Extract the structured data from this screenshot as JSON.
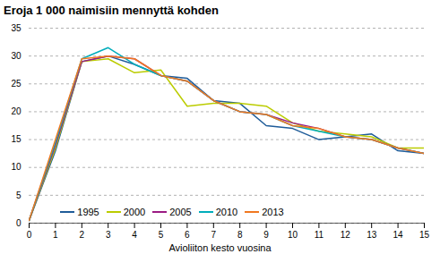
{
  "chart_data": {
    "type": "line",
    "title": "Eroja 1 000 naimisiin mennyttä kohden",
    "xlabel": "Avioliiton kesto vuosina",
    "x": [
      0,
      1,
      2,
      3,
      4,
      5,
      6,
      7,
      8,
      9,
      10,
      11,
      12,
      13,
      14,
      15
    ],
    "series": [
      {
        "name": "1995",
        "color": "#1F5C99",
        "values": [
          0.5,
          13.0,
          29.0,
          30.0,
          28.5,
          26.5,
          26.0,
          22.0,
          21.5,
          17.5,
          17.0,
          15.0,
          15.5,
          16.0,
          13.0,
          12.5
        ]
      },
      {
        "name": "2000",
        "color": "#BBCC00",
        "values": [
          0.5,
          13.5,
          29.0,
          29.5,
          27.0,
          27.5,
          21.0,
          21.5,
          21.5,
          21.0,
          18.0,
          16.5,
          16.0,
          15.5,
          13.5,
          13.5
        ]
      },
      {
        "name": "2005",
        "color": "#9B1B83",
        "values": [
          0.5,
          14.0,
          29.0,
          30.0,
          29.5,
          26.5,
          25.5,
          22.0,
          20.0,
          19.5,
          18.0,
          17.0,
          15.5,
          15.0,
          13.5,
          12.5
        ]
      },
      {
        "name": "2010",
        "color": "#00ADBB",
        "values": [
          0.5,
          14.5,
          29.5,
          31.5,
          28.5,
          26.5,
          25.5,
          22.0,
          20.0,
          19.5,
          17.5,
          16.5,
          15.5,
          15.0,
          13.5,
          12.5
        ]
      },
      {
        "name": "2013",
        "color": "#F07820",
        "values": [
          0.5,
          15.0,
          29.5,
          30.0,
          29.5,
          26.5,
          25.5,
          22.0,
          20.0,
          19.5,
          17.5,
          17.0,
          15.5,
          15.0,
          13.5,
          12.5
        ]
      }
    ],
    "xlim": [
      0,
      15
    ],
    "ylim": [
      0,
      35
    ],
    "xticks": [
      0,
      1,
      2,
      3,
      4,
      5,
      6,
      7,
      8,
      9,
      10,
      11,
      12,
      13,
      14,
      15
    ],
    "yticks": [
      0,
      5,
      10,
      15,
      20,
      25,
      30,
      35
    ],
    "grid": true,
    "legend": "lower left"
  }
}
